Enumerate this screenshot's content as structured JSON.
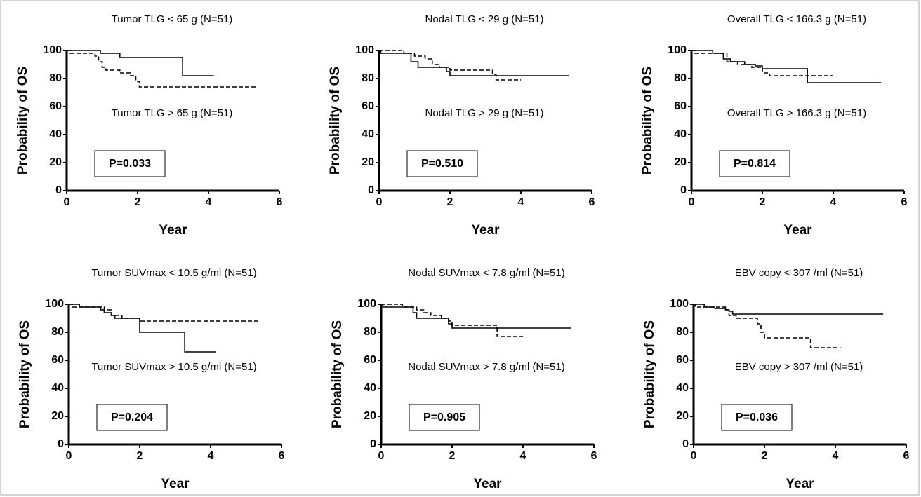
{
  "chart_data": [
    {
      "type": "line",
      "ylabel": "Probability of OS",
      "xlabel": "Year",
      "xlim": [
        0,
        6
      ],
      "ylim": [
        0,
        100
      ],
      "xticks": [
        0,
        2,
        4,
        6
      ],
      "yticks": [
        0,
        20,
        40,
        60,
        80,
        100
      ],
      "annotation": "P=0.033",
      "series": [
        {
          "name": "Tumor TLG < 65 g (N=51)",
          "color": "#000000",
          "line_style": "solid",
          "x": [
            0,
            0.95,
            1.5,
            3.27,
            4.15
          ],
          "values": [
            100,
            98,
            95,
            82,
            82
          ]
        },
        {
          "name": "Tumor TLG > 65 g (N=51)",
          "color": "#000000",
          "line_style": "dashed",
          "x": [
            0,
            0.1,
            0.8,
            0.9,
            1.0,
            1.1,
            1.5,
            1.8,
            1.95,
            2.05,
            5.35
          ],
          "values": [
            100,
            98,
            96,
            92,
            88,
            86,
            84,
            82,
            78,
            74,
            74
          ]
        }
      ]
    },
    {
      "type": "line",
      "ylabel": "Probability of OS",
      "xlabel": "Year",
      "xlim": [
        0,
        6
      ],
      "ylim": [
        0,
        100
      ],
      "xticks": [
        0,
        2,
        4,
        6
      ],
      "yticks": [
        0,
        20,
        40,
        60,
        80,
        100
      ],
      "annotation": "P=0.510",
      "series": [
        {
          "name": "Nodal TLG < 29 g (N=51)",
          "color": "#000000",
          "line_style": "solid",
          "x": [
            0,
            0.05,
            0.9,
            1.1,
            1.9,
            2.0,
            5.35
          ],
          "values": [
            100,
            98,
            92,
            88,
            85,
            82,
            82
          ]
        },
        {
          "name": "Nodal TLG > 29 g (N=51)",
          "color": "#000000",
          "line_style": "dashed",
          "x": [
            0,
            0.7,
            1.0,
            1.3,
            1.5,
            1.7,
            2.0,
            3.2,
            3.3,
            4.0
          ],
          "values": [
            100,
            98,
            96,
            94,
            90,
            88,
            86,
            83,
            79,
            79
          ]
        }
      ]
    },
    {
      "type": "line",
      "ylabel": "Probability of OS",
      "xlabel": "Year",
      "xlim": [
        0,
        6
      ],
      "ylim": [
        0,
        100
      ],
      "xticks": [
        0,
        2,
        4,
        6
      ],
      "yticks": [
        0,
        20,
        40,
        60,
        80,
        100
      ],
      "annotation": "P=0.814",
      "series": [
        {
          "name": "Overall TLG < 166.3 g (N=51)",
          "color": "#000000",
          "line_style": "solid",
          "x": [
            0,
            0.6,
            0.9,
            1.1,
            1.5,
            1.8,
            2.0,
            3.27,
            5.35
          ],
          "values": [
            100,
            98,
            94,
            92,
            90,
            89,
            87,
            77,
            77
          ]
        },
        {
          "name": "Overall TLG > 166.3 g (N=51)",
          "color": "#000000",
          "line_style": "dashed",
          "x": [
            0,
            0.1,
            1.0,
            1.3,
            1.7,
            2.0,
            2.2,
            4.0
          ],
          "values": [
            100,
            98,
            92,
            90,
            88,
            84,
            82,
            82
          ]
        }
      ]
    },
    {
      "type": "line",
      "ylabel": "Probability of OS",
      "xlabel": "Year",
      "xlim": [
        0,
        6
      ],
      "ylim": [
        0,
        100
      ],
      "xticks": [
        0,
        2,
        4,
        6
      ],
      "yticks": [
        0,
        20,
        40,
        60,
        80,
        100
      ],
      "annotation": "P=0.204",
      "series": [
        {
          "name": "Tumor SUVmax < 10.5 g/ml (N=51)",
          "color": "#000000",
          "line_style": "solid",
          "x": [
            0,
            0.3,
            0.9,
            1.0,
            1.2,
            1.3,
            2.0,
            3.27,
            4.15
          ],
          "values": [
            100,
            98,
            96,
            94,
            92,
            90,
            80,
            66,
            66
          ]
        },
        {
          "name": "Tumor SUVmax > 10.5 g/ml (N=51)",
          "color": "#000000",
          "line_style": "dashed",
          "x": [
            0,
            0.1,
            1.0,
            1.2,
            1.5,
            2.0,
            5.35
          ],
          "values": [
            100,
            98,
            96,
            92,
            90,
            88,
            88
          ]
        }
      ]
    },
    {
      "type": "line",
      "ylabel": "Probability of OS",
      "xlabel": "Year",
      "xlim": [
        0,
        6
      ],
      "ylim": [
        0,
        100
      ],
      "xticks": [
        0,
        2,
        4,
        6
      ],
      "yticks": [
        0,
        20,
        40,
        60,
        80,
        100
      ],
      "annotation": "P=0.905",
      "series": [
        {
          "name": "Nodal SUVmax < 7.8 g/ml (N=51)",
          "color": "#000000",
          "line_style": "solid",
          "x": [
            0,
            0.05,
            0.9,
            1.0,
            1.9,
            2.0,
            5.35
          ],
          "values": [
            100,
            98,
            94,
            90,
            86,
            83,
            83
          ]
        },
        {
          "name": "Nodal SUVmax > 7.8 g/ml (N=51)",
          "color": "#000000",
          "line_style": "dashed",
          "x": [
            0,
            0.6,
            1.0,
            1.2,
            1.4,
            1.7,
            1.9,
            2.0,
            3.27,
            4.0
          ],
          "values": [
            100,
            98,
            96,
            94,
            92,
            90,
            88,
            85,
            77,
            77
          ]
        }
      ]
    },
    {
      "type": "line",
      "ylabel": "Probability of OS",
      "xlabel": "Year",
      "xlim": [
        0,
        6
      ],
      "ylim": [
        0,
        100
      ],
      "xticks": [
        0,
        2,
        4,
        6
      ],
      "yticks": [
        0,
        20,
        40,
        60,
        80,
        100
      ],
      "annotation": "P=0.036",
      "series": [
        {
          "name": "EBV copy < 307 /ml (N=51)",
          "color": "#000000",
          "line_style": "solid",
          "x": [
            0,
            0.3,
            0.6,
            0.9,
            1.0,
            1.1,
            5.35
          ],
          "values": [
            100,
            98,
            97,
            96,
            95,
            93,
            93
          ]
        },
        {
          "name": "EBV copy > 307 /ml (N=51)",
          "color": "#000000",
          "line_style": "dashed",
          "x": [
            0,
            0.05,
            0.9,
            1.0,
            1.2,
            1.8,
            1.9,
            2.0,
            3.3,
            4.15
          ],
          "values": [
            100,
            98,
            96,
            92,
            90,
            86,
            80,
            76,
            69,
            69
          ]
        }
      ]
    }
  ]
}
